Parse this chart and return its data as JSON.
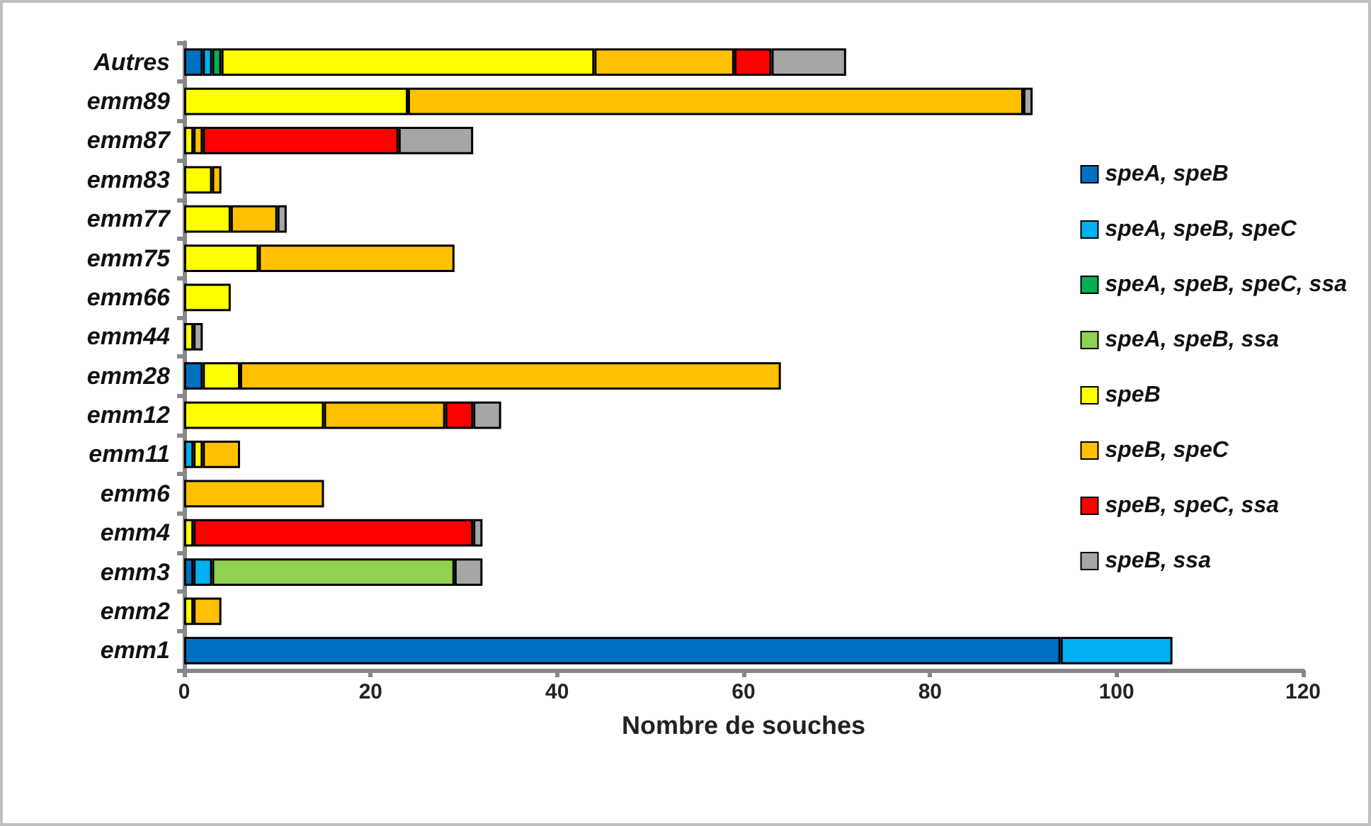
{
  "chart_data": {
    "type": "bar",
    "orientation": "horizontal",
    "stacked": true,
    "xlabel": "Nombre de souches",
    "categories": [
      "Autres",
      "emm89",
      "emm87",
      "emm83",
      "emm77",
      "emm75",
      "emm66",
      "emm44",
      "emm28",
      "emm12",
      "emm11",
      "emm6",
      "emm4",
      "emm3",
      "emm2",
      "emm1"
    ],
    "xlim": [
      0,
      120
    ],
    "xticks": [
      0,
      20,
      40,
      60,
      80,
      100,
      120
    ],
    "grid": false,
    "legend": "right",
    "series": [
      {
        "name": "speA, speB",
        "color": "#0070c0",
        "values": [
          2,
          null,
          null,
          null,
          null,
          null,
          null,
          null,
          2,
          null,
          null,
          null,
          null,
          1,
          null,
          94
        ]
      },
      {
        "name": "speA, speB, speC",
        "color": "#00b0f0",
        "values": [
          1,
          null,
          null,
          null,
          null,
          null,
          null,
          null,
          null,
          null,
          1,
          null,
          null,
          2,
          null,
          12
        ]
      },
      {
        "name": "speA, speB, speC, ssa",
        "color": "#00b050",
        "values": [
          1,
          null,
          null,
          null,
          null,
          null,
          null,
          null,
          null,
          null,
          null,
          null,
          null,
          null,
          null,
          null
        ]
      },
      {
        "name": "speA, speB, ssa",
        "color": "#92d050",
        "values": [
          null,
          null,
          null,
          null,
          null,
          null,
          null,
          null,
          null,
          null,
          null,
          null,
          null,
          26,
          null,
          null
        ]
      },
      {
        "name": "speB",
        "color": "#ffff00",
        "values": [
          40,
          24,
          1,
          3,
          5,
          8,
          5,
          1,
          4,
          15,
          1,
          null,
          1,
          null,
          1,
          null
        ]
      },
      {
        "name": "speB, speC",
        "color": "#ffc000",
        "values": [
          15,
          66,
          1,
          1,
          5,
          21,
          null,
          null,
          58,
          13,
          4,
          15,
          null,
          null,
          3,
          null
        ]
      },
      {
        "name": "speB, speC, ssa",
        "color": "#ff0000",
        "values": [
          4,
          null,
          21,
          null,
          null,
          null,
          null,
          null,
          null,
          3,
          null,
          null,
          30,
          null,
          null,
          null
        ]
      },
      {
        "name": "speB, ssa",
        "color": "#a6a6a6",
        "values": [
          8,
          1,
          8,
          null,
          1,
          null,
          null,
          1,
          null,
          3,
          null,
          null,
          1,
          3,
          null,
          null
        ]
      }
    ]
  }
}
